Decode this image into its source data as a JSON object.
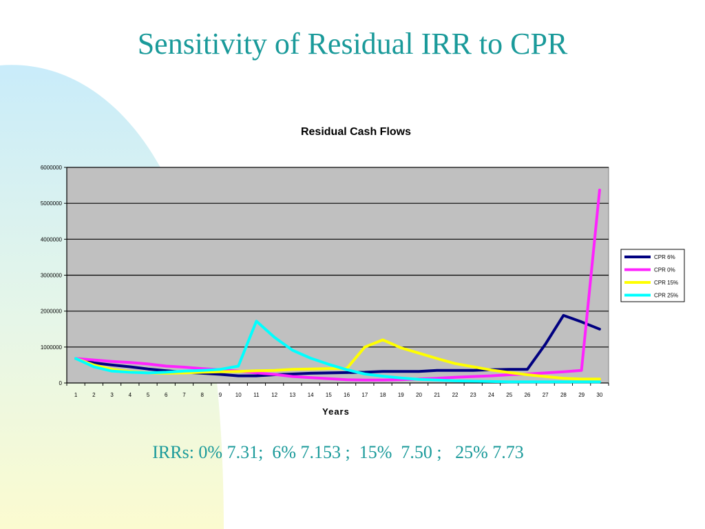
{
  "slide": {
    "title": "Sensitivity of Residual IRR to CPR",
    "footer": "IRRs: 0% 7.31;  6% 7.153 ;  15%  7.50 ;   25% 7.73"
  },
  "colors": {
    "title_text": "#1a9a9a",
    "bg_blue": "#c9ecfa",
    "bg_yellow": "#fbfbd0",
    "plot_bg": "#c0c0c0"
  },
  "chart_data": {
    "type": "line",
    "title": "Residual Cash Flows",
    "xlabel": "Years",
    "ylabel": "",
    "x": [
      1,
      2,
      3,
      4,
      5,
      6,
      7,
      8,
      9,
      10,
      11,
      12,
      13,
      14,
      15,
      16,
      17,
      18,
      19,
      20,
      21,
      22,
      23,
      24,
      25,
      26,
      27,
      28,
      29,
      30
    ],
    "ylim": [
      0,
      6000000
    ],
    "yticks": [
      "0",
      "1000000",
      "2000000",
      "3000000",
      "4000000",
      "5000000",
      "6000000"
    ],
    "grid": "horizontal",
    "legend_position": "right",
    "series": [
      {
        "name": "CPR 6%",
        "color": "#000080",
        "values": [
          680000,
          560000,
          500000,
          450000,
          390000,
          340000,
          300000,
          270000,
          240000,
          200000,
          200000,
          230000,
          250000,
          270000,
          280000,
          290000,
          300000,
          320000,
          320000,
          320000,
          350000,
          350000,
          350000,
          370000,
          380000,
          380000,
          1080000,
          1880000,
          1700000,
          1500000
        ]
      },
      {
        "name": "CPR 0%",
        "color": "#ff22ff",
        "values": [
          680000,
          640000,
          600000,
          570000,
          530000,
          470000,
          440000,
          400000,
          370000,
          330000,
          280000,
          240000,
          180000,
          150000,
          120000,
          90000,
          80000,
          80000,
          90000,
          110000,
          130000,
          160000,
          180000,
          200000,
          230000,
          250000,
          280000,
          310000,
          350000,
          5370000
        ]
      },
      {
        "name": "CPR 15%",
        "color": "#ffff00",
        "values": [
          680000,
          500000,
          380000,
          320000,
          280000,
          270000,
          280000,
          300000,
          310000,
          320000,
          340000,
          350000,
          380000,
          390000,
          400000,
          400000,
          1000000,
          1200000,
          980000,
          830000,
          680000,
          540000,
          450000,
          360000,
          290000,
          230000,
          180000,
          130000,
          110000,
          110000
        ]
      },
      {
        "name": "CPR 25%",
        "color": "#00ffff",
        "values": [
          680000,
          450000,
          330000,
          300000,
          280000,
          300000,
          330000,
          350000,
          380000,
          470000,
          1720000,
          1270000,
          910000,
          690000,
          520000,
          370000,
          250000,
          190000,
          140000,
          100000,
          80000,
          60000,
          50000,
          40000,
          30000,
          30000,
          30000,
          30000,
          30000,
          30000
        ]
      }
    ]
  }
}
